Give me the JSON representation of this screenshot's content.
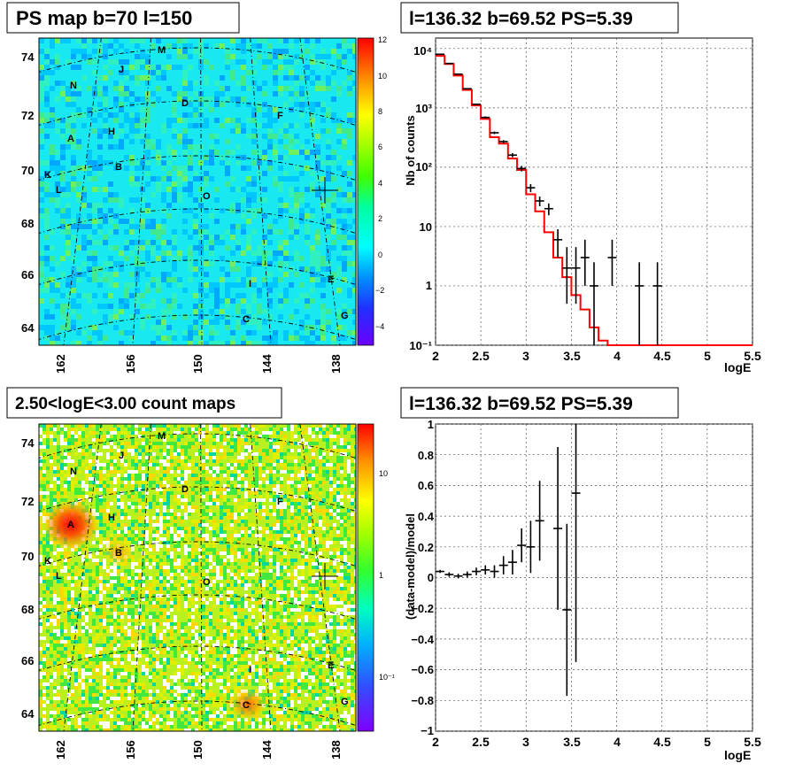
{
  "panels": {
    "ps_map": {
      "title": "PS map b=70 l=150",
      "yticks": [
        "74",
        "72",
        "70",
        "68",
        "66",
        "64"
      ],
      "xticks": [
        "162",
        "156",
        "150",
        "144",
        "138"
      ],
      "colorbar_ticks": [
        "12",
        "10",
        "8",
        "6",
        "4",
        "2",
        "0",
        "−2",
        "−4"
      ],
      "sources": [
        "M",
        "J",
        "N",
        "D",
        "F",
        "H",
        "A",
        "B",
        "K",
        "L",
        "O",
        "I",
        "E",
        "C",
        "G"
      ]
    },
    "count_map": {
      "title": "2.50<logE<3.00 count maps",
      "yticks": [
        "74",
        "72",
        "70",
        "68",
        "66",
        "64"
      ],
      "xticks": [
        "162",
        "156",
        "150",
        "144",
        "138"
      ],
      "colorbar_ticks": [
        "10",
        "1",
        "10⁻¹"
      ],
      "sources": [
        "M",
        "J",
        "N",
        "D",
        "F",
        "H",
        "A",
        "B",
        "K",
        "L",
        "O",
        "I",
        "E",
        "C",
        "G"
      ]
    },
    "spectrum": {
      "title": "l=136.32 b=69.52 PS=5.39",
      "ylabel": "Nb of counts",
      "xlabel": "logE",
      "xticks": [
        "2",
        "2.5",
        "3",
        "3.5",
        "4",
        "4.5",
        "5",
        "5.5"
      ],
      "yticks": [
        "10⁴",
        "10³",
        "10²",
        "10",
        "1",
        "10⁻¹"
      ]
    },
    "residual": {
      "title": "l=136.32 b=69.52 PS=5.39",
      "ylabel": "(data-model)/model",
      "xlabel": "logE",
      "xticks": [
        "2",
        "2.5",
        "3",
        "3.5",
        "4",
        "4.5",
        "5",
        "5.5"
      ],
      "yticks": [
        "1",
        "0.8",
        "0.6",
        "0.4",
        "0.2",
        "0",
        "−0.2",
        "−0.4",
        "−0.6",
        "−0.8",
        "−1"
      ]
    }
  },
  "chart_data": [
    {
      "type": "heatmap",
      "title": "PS map b=70 l=150",
      "xlabel": "",
      "ylabel": "",
      "xlim": [
        140,
        166
      ],
      "ylim": [
        63.5,
        75
      ],
      "zlim": [
        -5,
        12
      ],
      "x_reversed": true,
      "grid": true,
      "marker": {
        "l": 136.32,
        "b": 69.52
      },
      "labels": [
        {
          "text": "M",
          "l": 154.7,
          "b": 74.5
        },
        {
          "text": "J",
          "l": 157.2,
          "b": 73.8
        },
        {
          "text": "N",
          "l": 163.2,
          "b": 73.3
        },
        {
          "text": "D",
          "l": 150.5,
          "b": 72.6
        },
        {
          "text": "F",
          "l": 142.4,
          "b": 72.2
        },
        {
          "text": "H",
          "l": 158.0,
          "b": 71.6
        },
        {
          "text": "A",
          "l": 165.0,
          "b": 71.2
        },
        {
          "text": "B",
          "l": 158.6,
          "b": 70.4
        },
        {
          "text": "K",
          "l": 166.5,
          "b": 70.1
        },
        {
          "text": "L",
          "l": 165.9,
          "b": 69.6
        },
        {
          "text": "O",
          "l": 149.5,
          "b": 69.1
        },
        {
          "text": "I",
          "l": 145.1,
          "b": 66.2
        },
        {
          "text": "E",
          "l": 139.4,
          "b": 66.4
        },
        {
          "text": "C",
          "l": 145.8,
          "b": 64.7
        },
        {
          "text": "G",
          "l": 139.4,
          "b": 64.7
        }
      ]
    },
    {
      "type": "heatmap",
      "title": "2.50<logE<3.00 count maps",
      "xlabel": "",
      "ylabel": "",
      "xlim": [
        140,
        166
      ],
      "ylim": [
        63.5,
        75
      ],
      "z_scale": "log",
      "x_reversed": true,
      "grid": true,
      "marker": {
        "l": 136.32,
        "b": 69.52
      },
      "labels": [
        {
          "text": "M",
          "l": 154.7,
          "b": 74.5
        },
        {
          "text": "J",
          "l": 157.2,
          "b": 73.8
        },
        {
          "text": "N",
          "l": 163.2,
          "b": 73.3
        },
        {
          "text": "D",
          "l": 150.5,
          "b": 72.6
        },
        {
          "text": "F",
          "l": 142.4,
          "b": 72.2
        },
        {
          "text": "H",
          "l": 158.0,
          "b": 71.6
        },
        {
          "text": "A",
          "l": 165.0,
          "b": 71.2
        },
        {
          "text": "B",
          "l": 158.6,
          "b": 70.4
        },
        {
          "text": "K",
          "l": 166.5,
          "b": 70.1
        },
        {
          "text": "L",
          "l": 165.9,
          "b": 69.6
        },
        {
          "text": "O",
          "l": 149.5,
          "b": 69.1
        },
        {
          "text": "I",
          "l": 145.1,
          "b": 66.2
        },
        {
          "text": "E",
          "l": 139.4,
          "b": 66.4
        },
        {
          "text": "C",
          "l": 145.8,
          "b": 64.7
        },
        {
          "text": "G",
          "l": 139.4,
          "b": 64.7
        }
      ],
      "hotspots": [
        {
          "label": "A",
          "intensity": "high"
        },
        {
          "label": "B",
          "intensity": "medium"
        },
        {
          "label": "C",
          "intensity": "medium"
        }
      ]
    },
    {
      "type": "line",
      "title": "l=136.32 b=69.52 PS=5.39",
      "xlabel": "logE",
      "ylabel": "Nb of counts",
      "xlim": [
        2,
        5.5
      ],
      "ylim": [
        0.1,
        15000
      ],
      "y_scale": "log",
      "grid": true,
      "series": [
        {
          "kind": "step",
          "color": "#ff0000",
          "bin_edges": [
            2.0,
            2.1,
            2.2,
            2.3,
            2.4,
            2.5,
            2.6,
            2.7,
            2.8,
            2.9,
            3.0,
            3.1,
            3.2,
            3.3,
            3.4,
            3.5,
            3.6,
            3.7,
            3.8,
            3.9,
            4.0,
            5.5
          ],
          "values": [
            7500,
            5500,
            3500,
            2000,
            1100,
            650,
            320,
            250,
            140,
            90,
            35,
            18,
            8,
            3,
            1.4,
            0.7,
            0.4,
            0.2,
            0.12,
            0.1,
            0.1
          ]
        },
        {
          "kind": "points",
          "color": "#000000",
          "x": [
            2.05,
            2.15,
            2.25,
            2.35,
            2.45,
            2.55,
            2.65,
            2.75,
            2.85,
            2.95,
            3.05,
            3.15,
            3.25,
            3.35,
            3.45,
            3.55,
            3.65,
            3.75,
            3.95,
            4.25,
            4.45
          ],
          "y": [
            8000,
            5600,
            3700,
            2100,
            1150,
            690,
            380,
            270,
            160,
            95,
            45,
            27,
            20,
            6,
            2,
            2,
            3,
            1,
            3,
            1,
            1
          ],
          "yerr_low": [
            90,
            75,
            60,
            45,
            34,
            26,
            19,
            16,
            13,
            10,
            7,
            5,
            4.5,
            3,
            1.5,
            1.5,
            2,
            0.9,
            2,
            0.9,
            0.9
          ],
          "yerr_high": [
            90,
            75,
            60,
            45,
            34,
            26,
            19,
            16,
            13,
            10,
            7,
            5,
            4.5,
            3,
            2.5,
            2.5,
            3,
            1.5,
            3,
            1.5,
            1.5
          ]
        }
      ]
    },
    {
      "type": "scatter",
      "title": "l=136.32 b=69.52 PS=5.39",
      "xlabel": "logE",
      "ylabel": "(data-model)/model",
      "xlim": [
        2,
        5.5
      ],
      "ylim": [
        -1,
        1
      ],
      "grid": true,
      "series": [
        {
          "color": "#000000",
          "x": [
            2.05,
            2.15,
            2.25,
            2.35,
            2.45,
            2.55,
            2.65,
            2.75,
            2.85,
            2.95,
            3.05,
            3.15,
            3.35,
            3.45,
            3.55
          ],
          "y": [
            0.04,
            0.02,
            0.01,
            0.02,
            0.04,
            0.05,
            0.04,
            0.08,
            0.1,
            0.21,
            0.2,
            0.37,
            0.32,
            -0.21,
            0.55
          ],
          "yerr": [
            0.01,
            0.015,
            0.015,
            0.02,
            0.025,
            0.03,
            0.04,
            0.06,
            0.08,
            0.11,
            0.17,
            0.26,
            0.53,
            0.56,
            1.1
          ]
        }
      ]
    }
  ]
}
